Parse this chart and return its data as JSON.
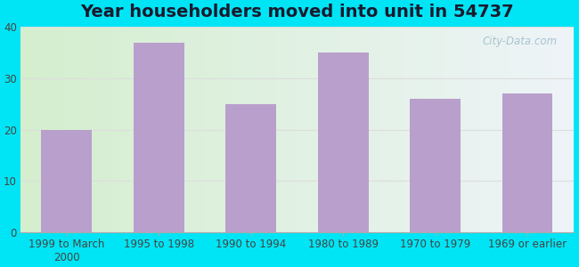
{
  "title": "Year householders moved into unit in 54737",
  "categories": [
    "1999 to March\n2000",
    "1995 to 1998",
    "1990 to 1994",
    "1980 to 1989",
    "1970 to 1979",
    "1969 or earlier"
  ],
  "values": [
    20,
    37,
    25,
    35,
    26,
    27
  ],
  "bar_color": "#b9a0cc",
  "ylim": [
    0,
    40
  ],
  "yticks": [
    0,
    10,
    20,
    30,
    40
  ],
  "background_outer": "#00e5f5",
  "background_inner_left": "#d4eece",
  "background_inner_right": "#eef4f8",
  "grid_color": "#dddddd",
  "title_fontsize": 14,
  "tick_fontsize": 8.5,
  "watermark_text": "City-Data.com",
  "title_color": "#1a1a2e"
}
